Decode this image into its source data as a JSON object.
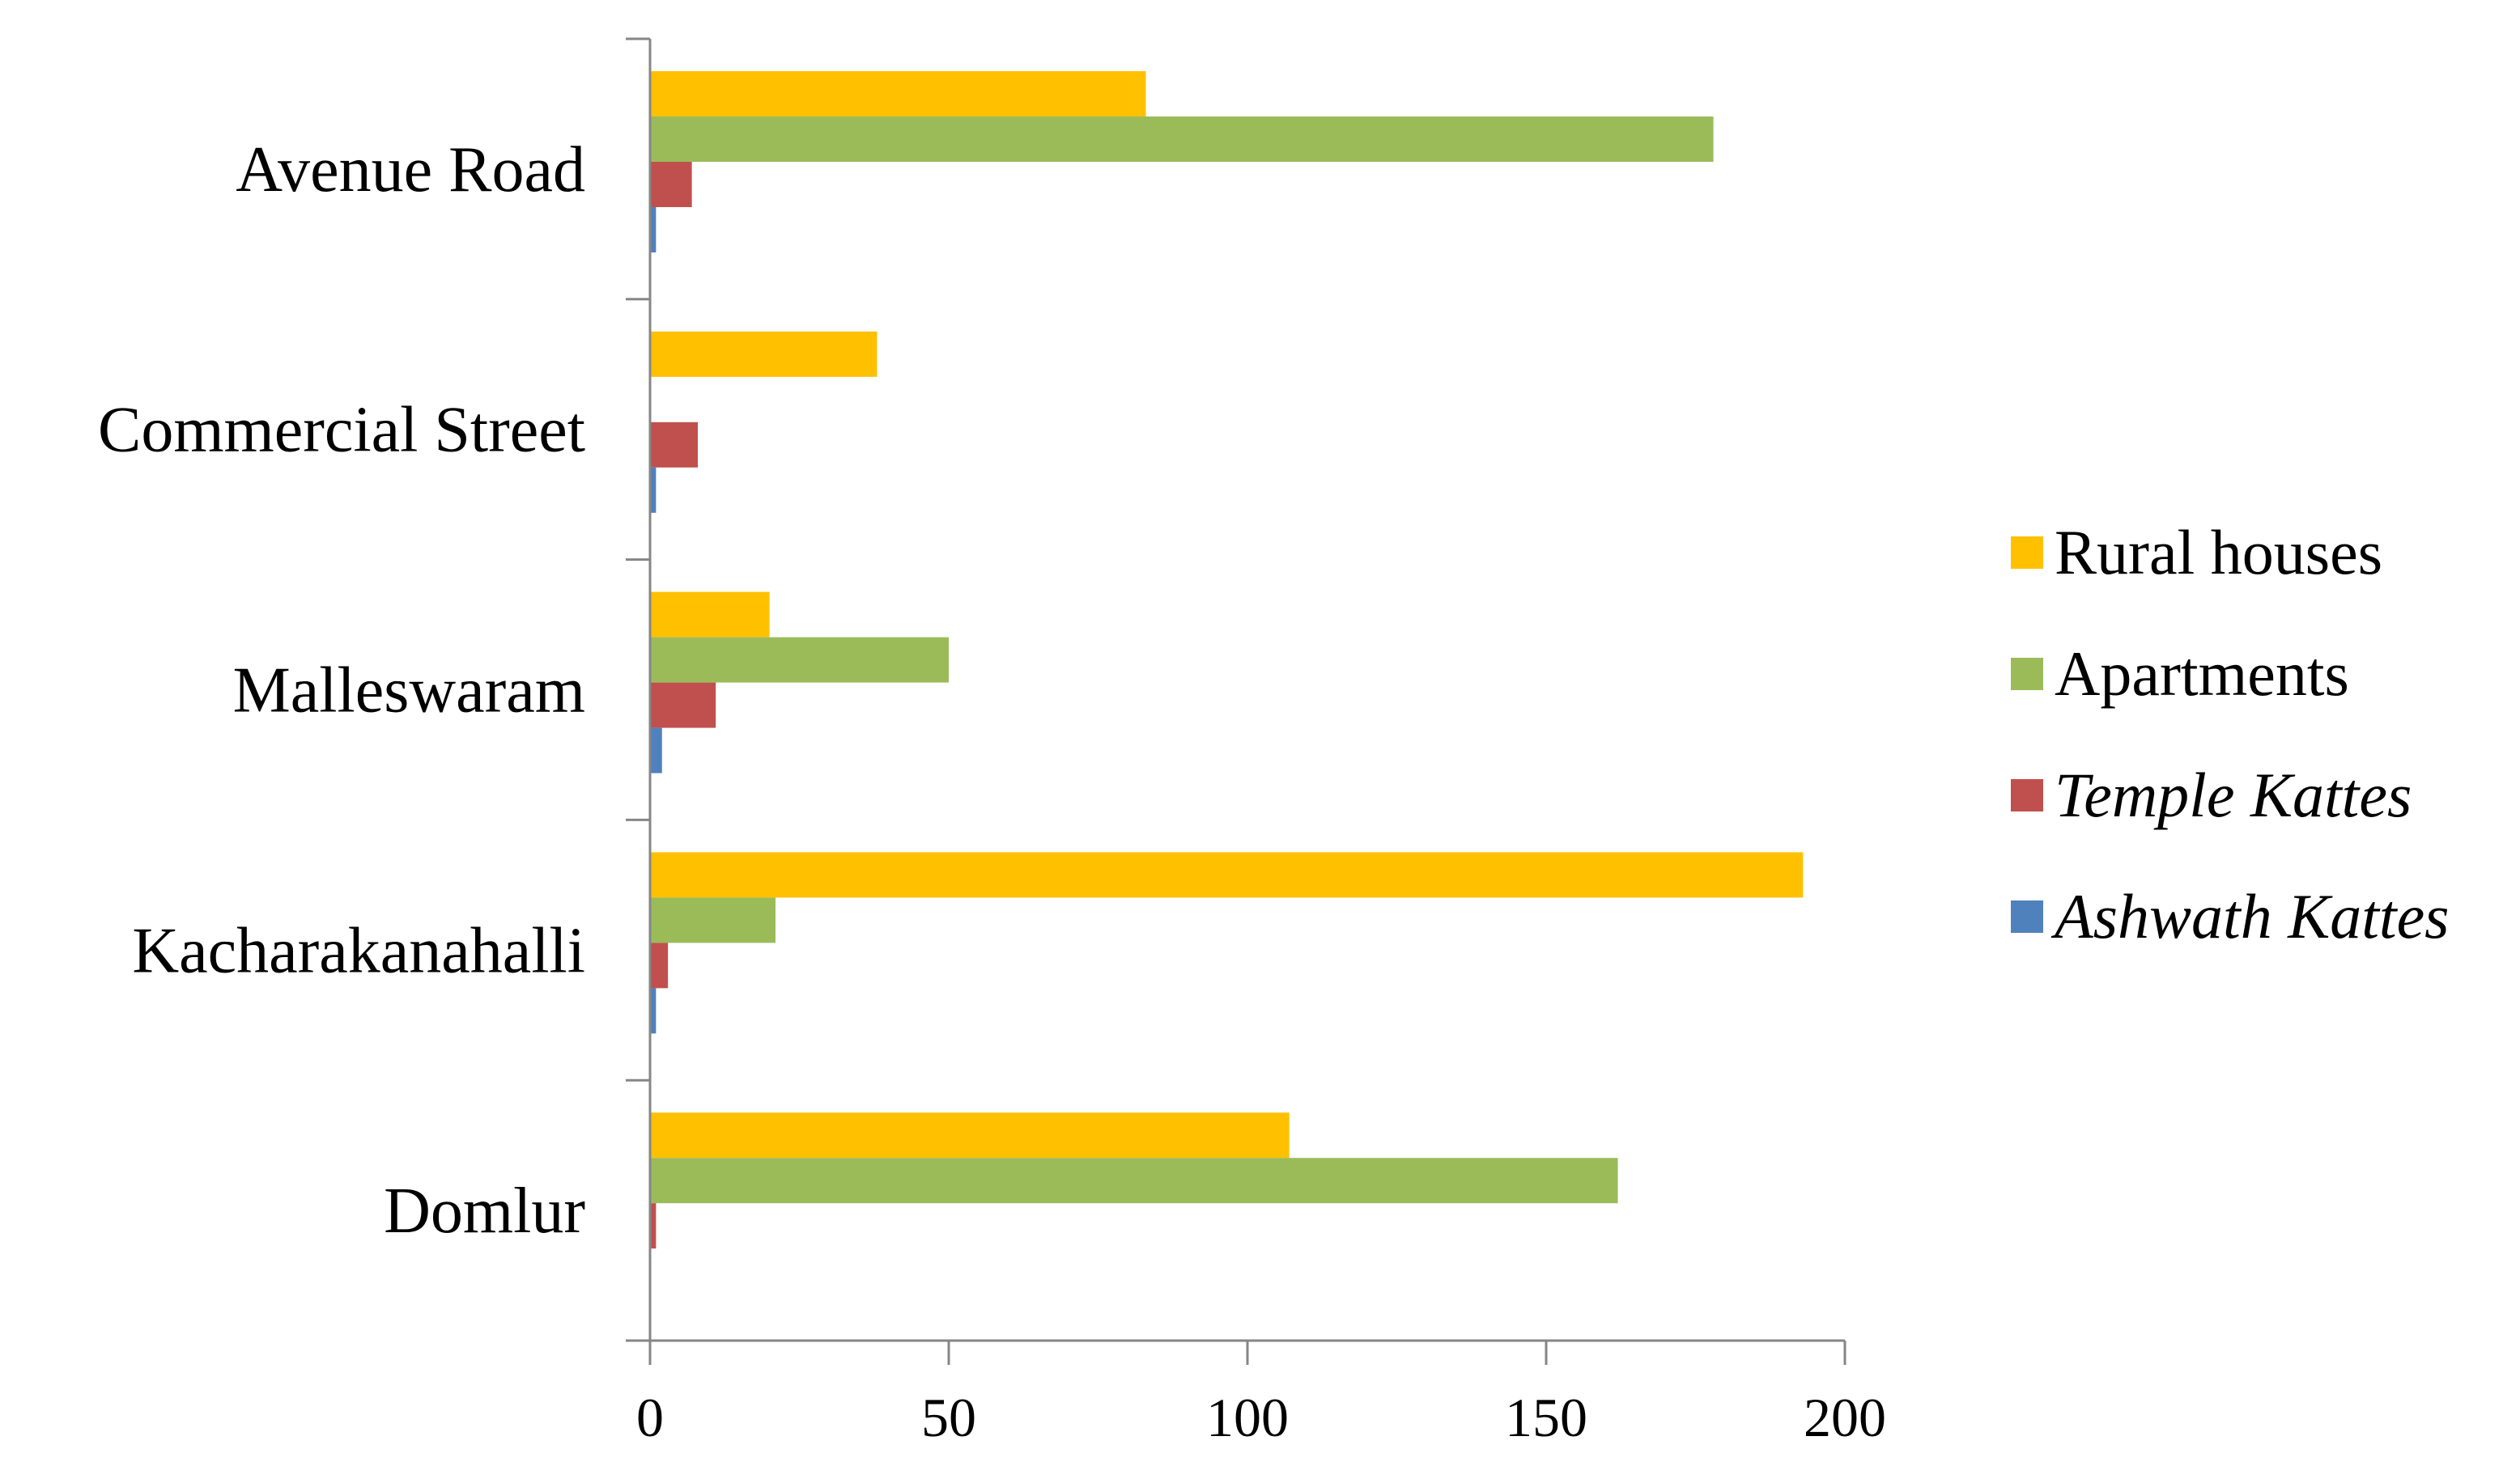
{
  "chart_data": {
    "type": "bar",
    "orientation": "horizontal",
    "title": "",
    "xlabel": "",
    "ylabel": "",
    "categories": [
      "Avenue Road",
      "Commercial Street",
      "Malleswaram",
      "Kacharakanahalli",
      "Domlur"
    ],
    "series": [
      {
        "name": "Rural houses",
        "italic": false,
        "color": "#FFC000",
        "values": [
          83,
          38,
          20,
          193,
          107
        ]
      },
      {
        "name": "Apartments",
        "italic": false,
        "color": "#9BBB59",
        "values": [
          178,
          0,
          50,
          21,
          162
        ]
      },
      {
        "name": "Temple Kattes",
        "italic": true,
        "color": "#C0504D",
        "values": [
          7,
          8,
          11,
          3,
          1
        ]
      },
      {
        "name": "Ashwath Kattes",
        "italic": true,
        "color": "#4F81BD",
        "values": [
          1,
          1,
          2,
          1,
          0
        ]
      }
    ],
    "xlim": [
      0,
      200
    ],
    "xticks": [
      0,
      50,
      100,
      150,
      200
    ],
    "xtick_labels": [
      "0",
      "50",
      "100",
      "150",
      "200"
    ],
    "grid": false,
    "legend_position": "right"
  }
}
